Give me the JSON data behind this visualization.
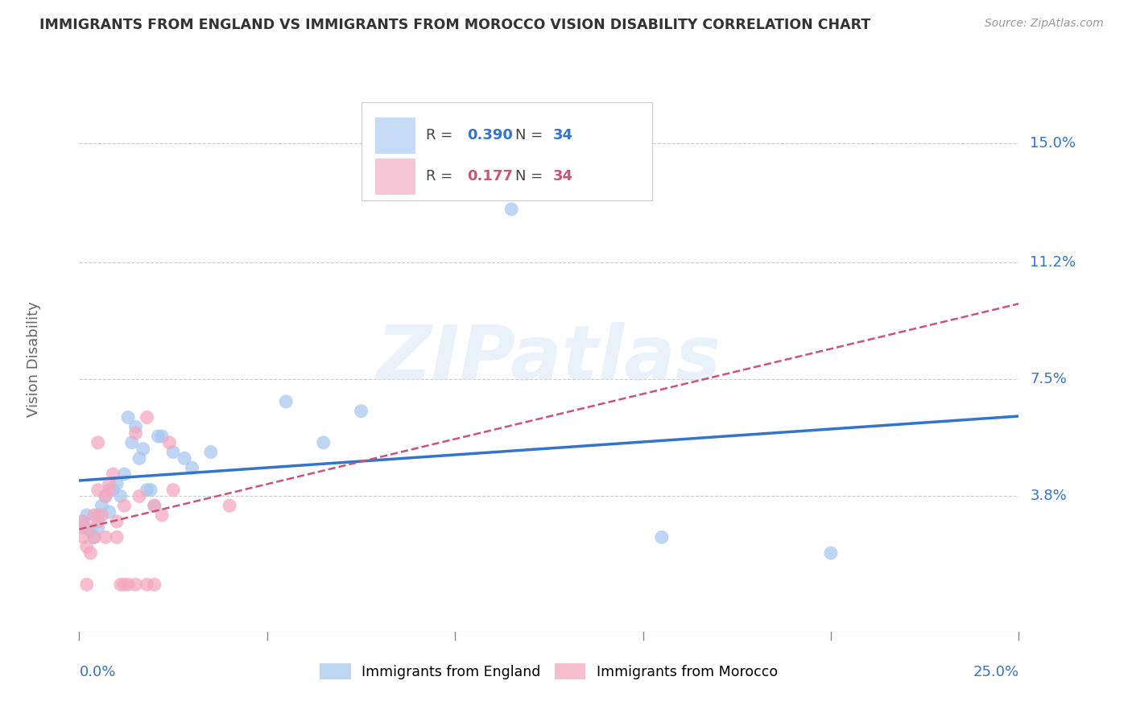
{
  "title": "IMMIGRANTS FROM ENGLAND VS IMMIGRANTS FROM MOROCCO VISION DISABILITY CORRELATION CHART",
  "source": "Source: ZipAtlas.com",
  "ylabel": "Vision Disability",
  "ytick_values": [
    0.038,
    0.075,
    0.112,
    0.15
  ],
  "ytick_labels": [
    "3.8%",
    "7.5%",
    "11.2%",
    "15.0%"
  ],
  "xlim": [
    0.0,
    0.25
  ],
  "ylim": [
    -0.005,
    0.168
  ],
  "england_color": "#A8C8F0",
  "morocco_color": "#F4A8C0",
  "england_line_color": "#3374CC",
  "morocco_line_color": "#CC5577",
  "legend_england": "Immigrants from England",
  "legend_morocco": "Immigrants from Morocco",
  "R_england": "0.390",
  "N_england": "34",
  "R_morocco": "0.177",
  "N_morocco": "34",
  "england_x": [
    0.001,
    0.001,
    0.002,
    0.003,
    0.004,
    0.005,
    0.005,
    0.006,
    0.007,
    0.008,
    0.009,
    0.01,
    0.011,
    0.012,
    0.013,
    0.014,
    0.015,
    0.016,
    0.017,
    0.018,
    0.019,
    0.02,
    0.021,
    0.022,
    0.025,
    0.028,
    0.03,
    0.035,
    0.055,
    0.065,
    0.075,
    0.115,
    0.155,
    0.2
  ],
  "england_y": [
    0.028,
    0.03,
    0.032,
    0.027,
    0.025,
    0.032,
    0.028,
    0.035,
    0.038,
    0.033,
    0.04,
    0.042,
    0.038,
    0.045,
    0.063,
    0.055,
    0.06,
    0.05,
    0.053,
    0.04,
    0.04,
    0.035,
    0.057,
    0.057,
    0.052,
    0.05,
    0.047,
    0.052,
    0.068,
    0.055,
    0.065,
    0.129,
    0.025,
    0.02
  ],
  "morocco_x": [
    0.001,
    0.001,
    0.002,
    0.002,
    0.003,
    0.004,
    0.004,
    0.005,
    0.005,
    0.006,
    0.007,
    0.007,
    0.008,
    0.009,
    0.01,
    0.01,
    0.011,
    0.012,
    0.013,
    0.015,
    0.016,
    0.018,
    0.02,
    0.02,
    0.022,
    0.024,
    0.025,
    0.005,
    0.008,
    0.012,
    0.015,
    0.018,
    0.04,
    0.002
  ],
  "morocco_y": [
    0.025,
    0.03,
    0.028,
    0.022,
    0.02,
    0.025,
    0.032,
    0.03,
    0.04,
    0.032,
    0.038,
    0.025,
    0.04,
    0.045,
    0.03,
    0.025,
    0.01,
    0.01,
    0.01,
    0.058,
    0.038,
    0.063,
    0.035,
    0.01,
    0.032,
    0.055,
    0.04,
    0.055,
    0.042,
    0.035,
    0.01,
    0.01,
    0.035,
    0.01
  ],
  "watermark_text": "ZIPatlas",
  "bg_color": "#ffffff",
  "grid_color": "#cccccc",
  "title_color": "#333333",
  "axis_label_color": "#666666",
  "tick_label_color": "#3374CC",
  "source_color": "#999999",
  "bottom_legend_labels": [
    "Immigrants from England",
    "Immigrants from Morocco"
  ]
}
